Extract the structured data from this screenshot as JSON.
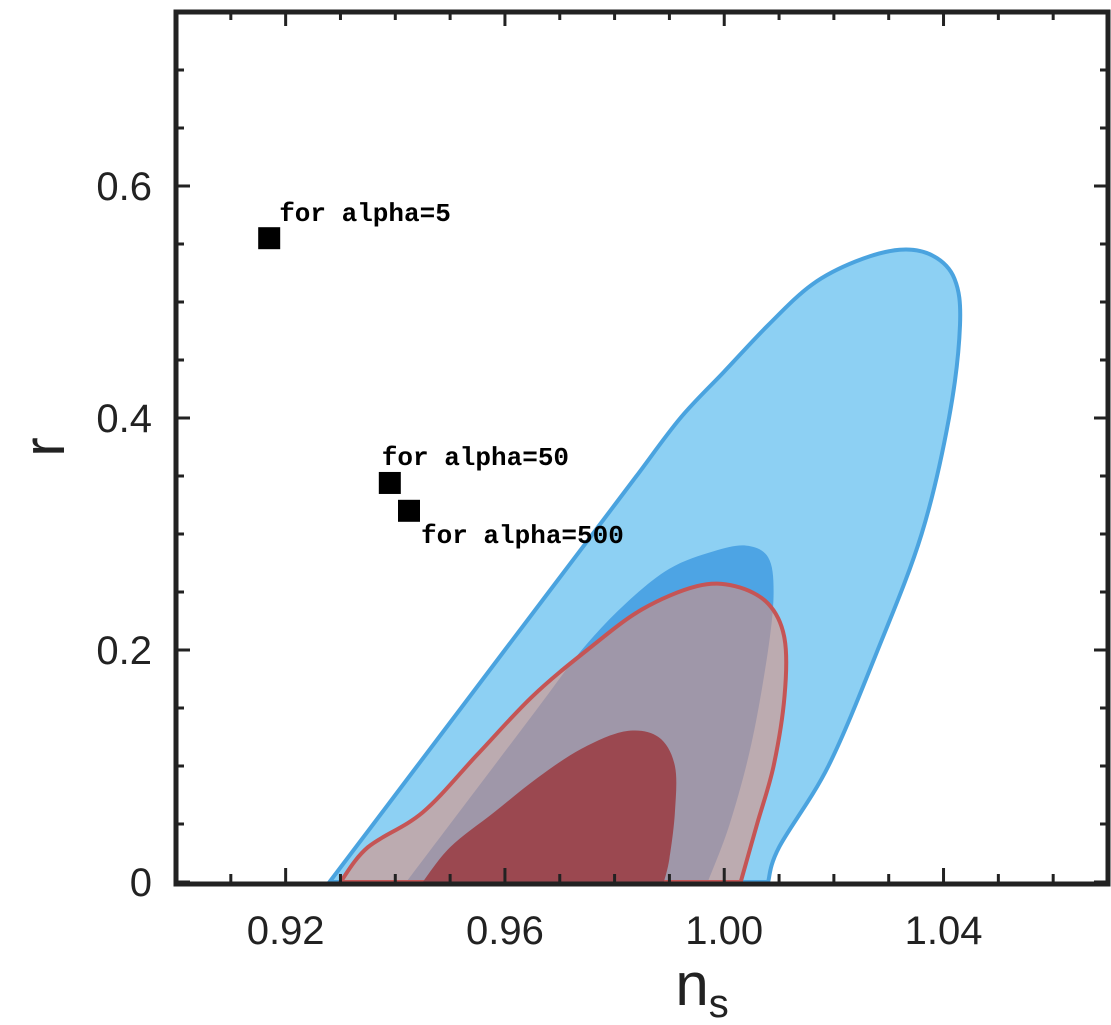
{
  "chart_data": {
    "type": "scatter",
    "title": "",
    "xlabel": "n",
    "xlabel_subscript": "s",
    "ylabel": "r",
    "xlim": [
      0.9,
      1.07
    ],
    "ylim": [
      0,
      0.75
    ],
    "x_ticks": [
      {
        "value": 0.92,
        "label": "0.92"
      },
      {
        "value": 0.96,
        "label": "0.96"
      },
      {
        "value": 1.0,
        "label": "1.00"
      },
      {
        "value": 1.04,
        "label": "1.04"
      }
    ],
    "y_ticks": [
      {
        "value": 0,
        "label": "0"
      },
      {
        "value": 0.2,
        "label": "0.2"
      },
      {
        "value": 0.4,
        "label": "0.4"
      },
      {
        "value": 0.6,
        "label": "0.6"
      }
    ],
    "points": [
      {
        "x": 0.917,
        "y": 0.555,
        "label": "for alpha=5"
      },
      {
        "x": 0.939,
        "y": 0.344,
        "label": "for alpha=50"
      },
      {
        "x": 0.9425,
        "y": 0.32,
        "label": "for alpha=500"
      }
    ],
    "regions": [
      {
        "role": "blue-outer",
        "fill": "#8dd0f3",
        "stroke": "#4aa3df",
        "points": [
          [
            0.928,
            0
          ],
          [
            0.936,
            0.05
          ],
          [
            0.944,
            0.1
          ],
          [
            0.952,
            0.15
          ],
          [
            0.96,
            0.2
          ],
          [
            0.968,
            0.25
          ],
          [
            0.976,
            0.3
          ],
          [
            0.984,
            0.35
          ],
          [
            0.992,
            0.4
          ],
          [
            1.0,
            0.44
          ],
          [
            1.008,
            0.48
          ],
          [
            1.016,
            0.515
          ],
          [
            1.024,
            0.535
          ],
          [
            1.032,
            0.545
          ],
          [
            1.038,
            0.54
          ],
          [
            1.042,
            0.52
          ],
          [
            1.043,
            0.48
          ],
          [
            1.041,
            0.4
          ],
          [
            1.036,
            0.3
          ],
          [
            1.028,
            0.2
          ],
          [
            1.019,
            0.1
          ],
          [
            1.01,
            0.03
          ],
          [
            1.008,
            0
          ]
        ]
      },
      {
        "role": "blue-inner",
        "fill": "#4da4e4",
        "stroke": "",
        "points": [
          [
            0.942,
            0
          ],
          [
            0.95,
            0.05
          ],
          [
            0.958,
            0.1
          ],
          [
            0.966,
            0.15
          ],
          [
            0.974,
            0.2
          ],
          [
            0.982,
            0.24
          ],
          [
            0.99,
            0.27
          ],
          [
            0.998,
            0.285
          ],
          [
            1.004,
            0.29
          ],
          [
            1.008,
            0.28
          ],
          [
            1.009,
            0.25
          ],
          [
            1.008,
            0.2
          ],
          [
            1.005,
            0.12
          ],
          [
            1.001,
            0.05
          ],
          [
            0.997,
            0
          ]
        ]
      },
      {
        "role": "red-outer",
        "fill": "rgba(228,140,120,0.55)",
        "stroke": "#c55555",
        "points": [
          [
            0.93,
            0
          ],
          [
            0.935,
            0.03
          ],
          [
            0.945,
            0.06
          ],
          [
            0.955,
            0.11
          ],
          [
            0.965,
            0.16
          ],
          [
            0.975,
            0.2
          ],
          [
            0.985,
            0.235
          ],
          [
            0.995,
            0.255
          ],
          [
            1.002,
            0.255
          ],
          [
            1.008,
            0.24
          ],
          [
            1.011,
            0.21
          ],
          [
            1.011,
            0.16
          ],
          [
            1.009,
            0.1
          ],
          [
            1.006,
            0.05
          ],
          [
            1.003,
            0
          ]
        ]
      },
      {
        "role": "red-inner",
        "fill": "#9b4850",
        "stroke": "",
        "points": [
          [
            0.945,
            0
          ],
          [
            0.95,
            0.03
          ],
          [
            0.958,
            0.06
          ],
          [
            0.966,
            0.09
          ],
          [
            0.974,
            0.115
          ],
          [
            0.982,
            0.13
          ],
          [
            0.988,
            0.125
          ],
          [
            0.991,
            0.1
          ],
          [
            0.991,
            0.06
          ],
          [
            0.99,
            0.02
          ],
          [
            0.989,
            0
          ]
        ]
      }
    ]
  }
}
